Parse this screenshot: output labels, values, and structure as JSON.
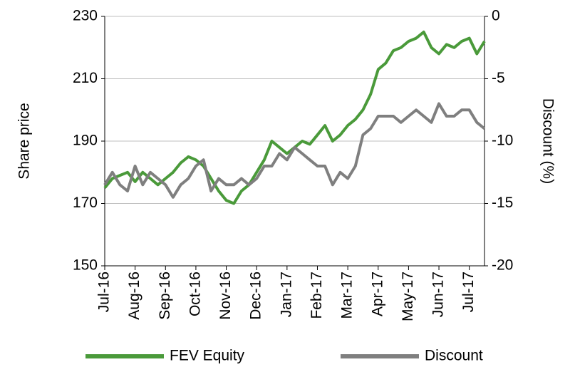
{
  "chart_data": {
    "type": "line",
    "y_label": "Share price",
    "y2_label": "Discount (%)",
    "categories": [
      "Jul-16",
      null,
      null,
      null,
      "Aug-16",
      null,
      null,
      null,
      "Sep-16",
      null,
      null,
      null,
      "Oct-16",
      null,
      null,
      null,
      "Nov-16",
      null,
      null,
      null,
      "Dec-16",
      null,
      null,
      null,
      "Jan-17",
      null,
      null,
      null,
      "Feb-17",
      null,
      null,
      null,
      "Mar-17",
      null,
      null,
      null,
      "Apr-17",
      null,
      null,
      null,
      "May-17",
      null,
      null,
      null,
      "Jun-17",
      null,
      null,
      null,
      "Jul-17",
      null,
      null
    ],
    "ylim": [
      150,
      230
    ],
    "yticks": [
      150,
      170,
      190,
      210,
      230
    ],
    "y2lim": [
      -20,
      0
    ],
    "y2ticks": [
      -20,
      -15,
      -10,
      -5,
      0
    ],
    "grid": true,
    "legend": "bottom",
    "series": [
      {
        "name": "FEV Equity",
        "color": "#4a9a3a",
        "values": [
          175,
          178,
          179,
          180,
          177,
          180,
          178,
          176,
          178,
          180,
          183,
          185,
          184,
          182,
          178,
          174,
          171,
          170,
          174,
          176,
          180,
          184,
          190,
          188,
          186,
          188,
          190,
          189,
          192,
          195,
          190,
          192,
          195,
          197,
          200,
          205,
          213,
          215,
          219,
          220,
          222,
          223,
          225,
          220,
          218,
          221,
          220,
          222,
          223,
          218,
          222
        ]
      },
      {
        "name": "Discount",
        "color": "#7f7f7f",
        "axis": "y2",
        "values": [
          -13.5,
          -12.5,
          -13.5,
          -14,
          -12,
          -13.5,
          -12.5,
          -13,
          -13.5,
          -14.5,
          -13.5,
          -13,
          -12,
          -11.5,
          -14,
          -13,
          -13.5,
          -13.5,
          -13,
          -13.5,
          -13,
          -12,
          -12,
          -11,
          -11.5,
          -10.5,
          -11,
          -11.5,
          -12,
          -12,
          -13.5,
          -12.5,
          -13,
          -12,
          -9.5,
          -9,
          -8,
          -8,
          -8,
          -8.5,
          -8,
          -7.5,
          -8,
          -8.5,
          -7,
          -8,
          -8,
          -7.5,
          -7.5,
          -8.5,
          -9
        ]
      }
    ]
  }
}
